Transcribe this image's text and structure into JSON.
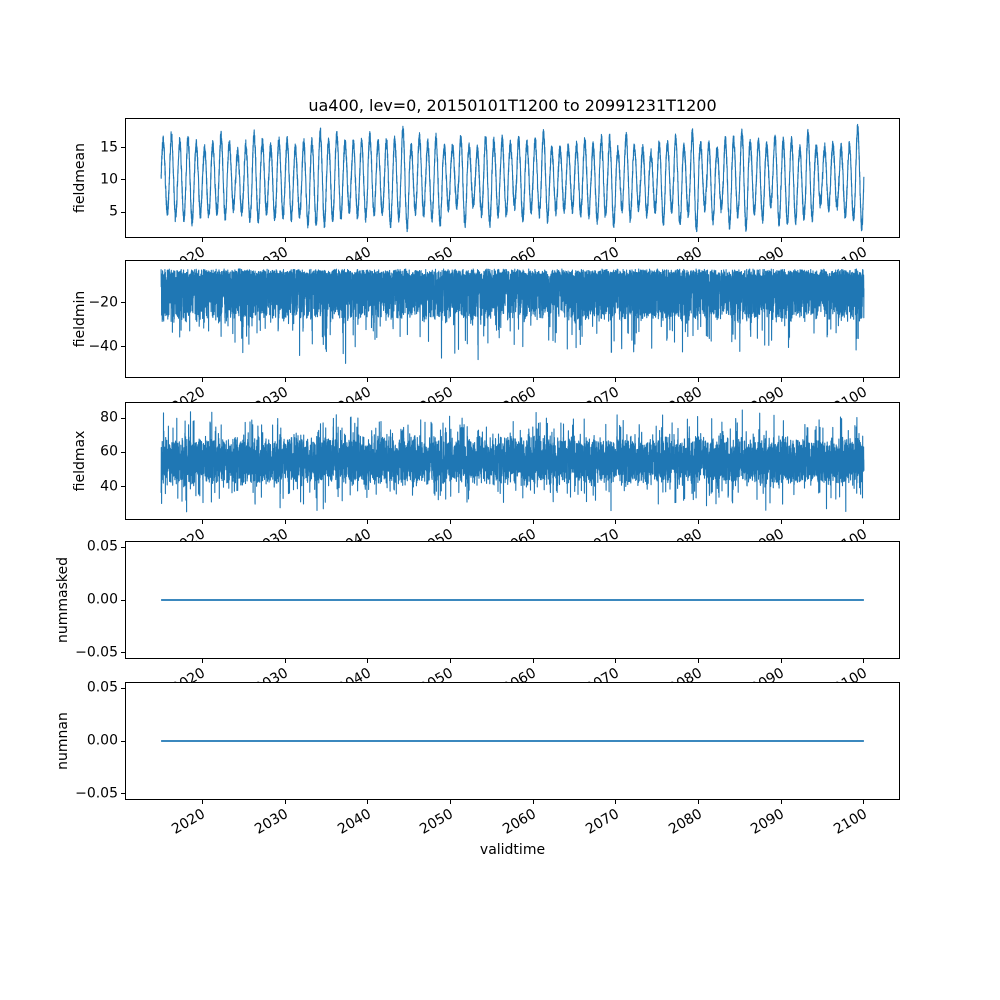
{
  "title": "ua400, lev=0, 20150101T1200 to 20991231T1200",
  "xlabel": "validtime",
  "line_color": "#1f77b4",
  "background": "#ffffff",
  "x_axis": {
    "lim": [
      2010.75,
      2104.25
    ],
    "tick_values": [
      2020,
      2030,
      2040,
      2050,
      2060,
      2070,
      2080,
      2090,
      2100
    ],
    "tick_labels": [
      "2020",
      "2030",
      "2040",
      "2050",
      "2060",
      "2070",
      "2080",
      "2090",
      "2100"
    ],
    "data_start": 2015.0,
    "data_end": 2100.0,
    "tick_label_rotation_deg": 30
  },
  "chart_data": [
    {
      "type": "line",
      "ylabel": "fieldmean",
      "ytick_values": [
        5,
        10,
        15
      ],
      "ytick_labels": [
        "5",
        "10",
        "15"
      ],
      "ylim": [
        1.17,
        19.43
      ],
      "data_min": 2.0,
      "data_max": 18.6,
      "description": "annual seasonal oscillation around mean ~10, peaks ~15-18, troughs ~3-5",
      "signal": {
        "kind": "seasonal",
        "mean": 10.1,
        "amplitude": 5.4,
        "amp_jitter": 1.2,
        "mean_jitter": 0.6,
        "noise": 0.9,
        "points_per_year": 110,
        "seed": 42,
        "clamp": [
          2.0,
          18.6
        ]
      }
    },
    {
      "type": "line",
      "ylabel": "fieldmin",
      "ytick_values": [
        -20,
        -40
      ],
      "ytick_labels": [
        "−20",
        "−40"
      ],
      "ylim": [
        -53.9,
        -0.89
      ],
      "data_min": -51.5,
      "data_max": -3.3,
      "description": "dense noise band ~-5 to -28 with frequent downward spikes to -35..-50",
      "signal": {
        "kind": "noisy",
        "base": -4.5,
        "jitter": -3.5,
        "body": -21,
        "body_pow": 2,
        "spike_p": 0.05,
        "spike_min": -20,
        "spike_max": -8,
        "spike2_p": 0,
        "spike2_min": 0,
        "spike2_max": 0,
        "points_per_year": 100,
        "seed": 7,
        "clamp": [
          -51.5,
          -3.3
        ]
      }
    },
    {
      "type": "line",
      "ylabel": "fieldmax",
      "ytick_values": [
        40,
        60,
        80
      ],
      "ytick_labels": [
        "40",
        "60",
        "80"
      ],
      "ylim": [
        20.9,
        89.1
      ],
      "data_min": 24.0,
      "data_max": 86.0,
      "description": "dense noise band ~40 to 70 with spikes up to ~86 and down to ~28",
      "signal": {
        "kind": "noisy",
        "base": 40,
        "jitter": 15,
        "body": 15,
        "body_pow": 1,
        "spike_p": 0.05,
        "spike_min": 9,
        "spike_max": 18,
        "spike2_p": 0.05,
        "spike2_min": -18,
        "spike2_max": -8,
        "points_per_year": 100,
        "seed": 13,
        "clamp": [
          24.0,
          86.0
        ]
      }
    },
    {
      "type": "line",
      "ylabel": "nummasked",
      "ytick_values": [
        0.05,
        0.0,
        -0.05
      ],
      "ytick_labels": [
        "0.05",
        "0.00",
        "−0.05"
      ],
      "ylim": [
        -0.055,
        0.055
      ],
      "data_min": 0,
      "data_max": 0,
      "description": "constant zero line",
      "points": [
        [
          2015.0,
          0
        ],
        [
          2100.0,
          0
        ]
      ],
      "signal": {
        "kind": "constant",
        "value": 0
      }
    },
    {
      "type": "line",
      "ylabel": "numnan",
      "ytick_values": [
        0.05,
        0.0,
        -0.05
      ],
      "ytick_labels": [
        "0.05",
        "0.00",
        "−0.05"
      ],
      "ylim": [
        -0.055,
        0.055
      ],
      "data_min": 0,
      "data_max": 0,
      "description": "constant zero line",
      "points": [
        [
          2015.0,
          0
        ],
        [
          2100.0,
          0
        ]
      ],
      "signal": {
        "kind": "constant",
        "value": 0
      }
    }
  ]
}
